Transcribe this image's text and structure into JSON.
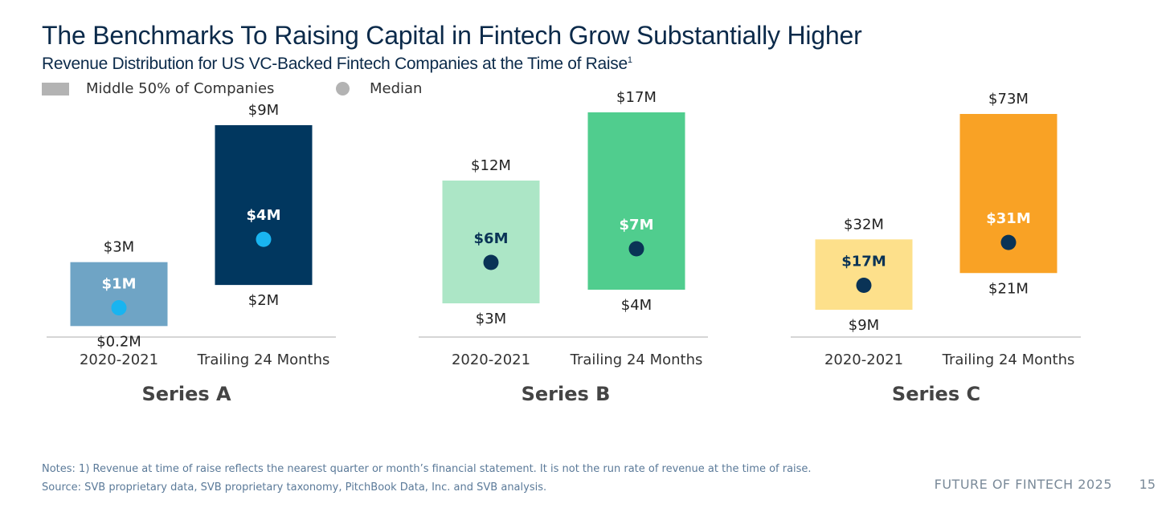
{
  "title": "The Benchmarks To Raising Capital in Fintech Grow Substantially Higher",
  "subtitle": "Revenue Distribution for US VC-Backed Fintech Companies at the Time of Raise",
  "subtitle_footnote": "1",
  "legend": {
    "range_label": "Middle 50% of Companies",
    "median_label": "Median"
  },
  "chart_data": [
    {
      "type": "floating-bar",
      "title": "Series A",
      "categories": [
        "2020-2021",
        "Trailing 24 Months"
      ],
      "series": [
        {
          "name": "2020-2021",
          "low": 0.2,
          "high": 3,
          "median": 1,
          "low_label": "$0.2M",
          "high_label": "$3M",
          "median_label": "$1M",
          "color": "#6fa4c5",
          "median_color": "#19b4f0",
          "median_text_color": "#ffffff"
        },
        {
          "name": "Trailing 24 Months",
          "low": 2,
          "high": 9,
          "median": 4,
          "low_label": "$2M",
          "high_label": "$9M",
          "median_label": "$4M",
          "color": "#01375f",
          "median_color": "#19b4f0",
          "median_text_color": "#ffffff"
        }
      ]
    },
    {
      "type": "floating-bar",
      "title": "Series B",
      "categories": [
        "2020-2021",
        "Trailing 24 Months"
      ],
      "series": [
        {
          "name": "2020-2021",
          "low": 3,
          "high": 12,
          "median": 6,
          "low_label": "$3M",
          "high_label": "$12M",
          "median_label": "$6M",
          "color": "#ace6c6",
          "median_color": "#0a3356",
          "median_text_color": "#0a3356"
        },
        {
          "name": "Trailing 24 Months",
          "low": 4,
          "high": 17,
          "median": 7,
          "low_label": "$4M",
          "high_label": "$17M",
          "median_label": "$7M",
          "color": "#50cd8e",
          "median_color": "#0a3356",
          "median_text_color": "#ffffff"
        }
      ]
    },
    {
      "type": "floating-bar",
      "title": "Series C",
      "categories": [
        "2020-2021",
        "Trailing 24 Months"
      ],
      "series": [
        {
          "name": "2020-2021",
          "low": 9,
          "high": 32,
          "median": 17,
          "low_label": "$9M",
          "high_label": "$32M",
          "median_label": "$17M",
          "color": "#fde08b",
          "median_color": "#0a3356",
          "median_text_color": "#0a3356"
        },
        {
          "name": "Trailing 24 Months",
          "low": 21,
          "high": 73,
          "median": 31,
          "low_label": "$21M",
          "high_label": "$73M",
          "median_label": "$31M",
          "color": "#f9a225",
          "median_color": "#0a3356",
          "median_text_color": "#ffffff"
        }
      ]
    }
  ],
  "notes": "Notes: 1) Revenue at time of raise reflects the nearest quarter or month’s financial statement. It is not the run rate of revenue at the time of raise.",
  "source": "Source: SVB proprietary data, SVB proprietary taxonomy, PitchBook Data, Inc. and SVB analysis.",
  "footer": "FUTURE OF FINTECH 2025",
  "page_number": "15"
}
